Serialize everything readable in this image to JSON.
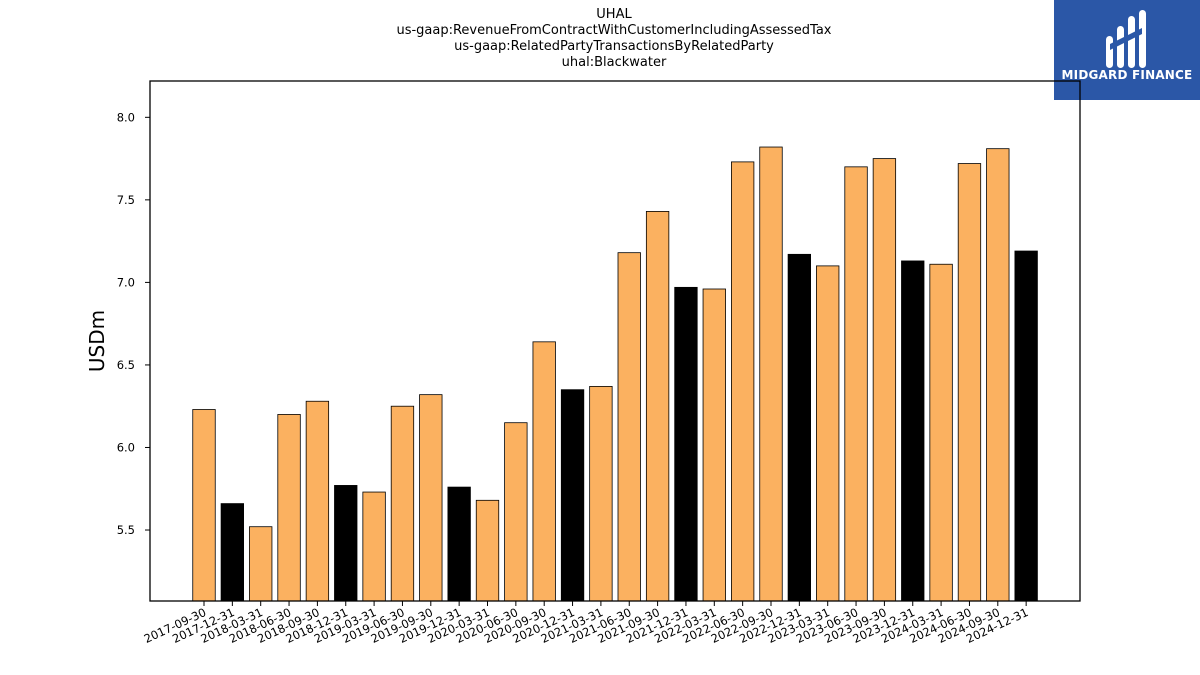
{
  "title_lines": [
    "UHAL",
    "us-gaap:RevenueFromContractWithCustomerIncludingAssessedTax",
    "us-gaap:RelatedPartyTransactionsByRelatedParty",
    "uhal:Blackwater"
  ],
  "logo": {
    "text": "MIDGARD FINANCE",
    "background": "#2b57a7",
    "text_color": "#ffffff"
  },
  "chart_data": {
    "type": "bar",
    "ylabel": "USDm",
    "xlabel": "",
    "ylim": [
      5.07,
      8.22
    ],
    "yticks": [
      5.5,
      6.0,
      6.5,
      7.0,
      7.5,
      8.0
    ],
    "grid": false,
    "categories": [
      "2017-09-30",
      "2017-12-31",
      "2018-03-31",
      "2018-06-30",
      "2018-09-30",
      "2018-12-31",
      "2019-03-31",
      "2019-06-30",
      "2019-09-30",
      "2019-12-31",
      "2020-03-31",
      "2020-06-30",
      "2020-09-30",
      "2020-12-31",
      "2021-03-31",
      "2021-06-30",
      "2021-09-30",
      "2021-12-31",
      "2022-03-31",
      "2022-06-30",
      "2022-09-30",
      "2022-12-31",
      "2023-03-31",
      "2023-06-30",
      "2023-09-30",
      "2023-12-31",
      "2024-03-31",
      "2024-06-30",
      "2024-09-30",
      "2024-12-31"
    ],
    "values": [
      6.23,
      5.66,
      5.52,
      6.2,
      6.28,
      5.77,
      5.73,
      6.25,
      6.32,
      5.76,
      5.68,
      6.15,
      6.64,
      6.35,
      6.37,
      7.18,
      7.43,
      6.97,
      6.96,
      7.73,
      7.82,
      7.17,
      7.1,
      7.7,
      7.75,
      7.13,
      7.11,
      7.72,
      7.81,
      7.19
    ],
    "colors": {
      "quarter": "#fbb160",
      "year_end": "#000000",
      "edge": "#000000"
    },
    "year_end_mark": "12-31"
  }
}
